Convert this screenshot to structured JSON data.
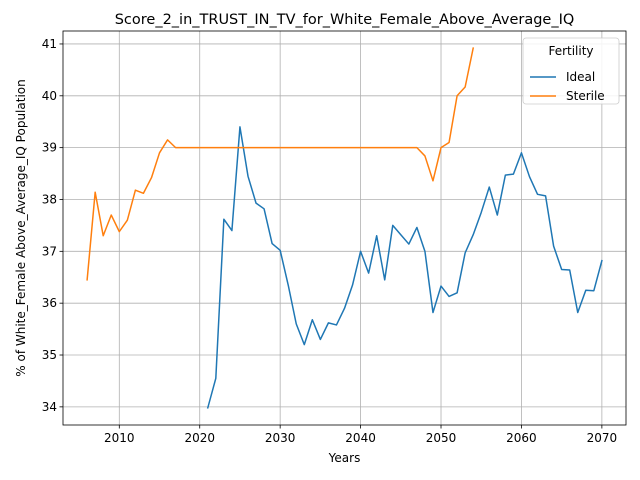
{
  "chart_data": {
    "type": "line",
    "title": "Score_2_in_TRUST_IN_TV_for_White_Female_Above_Average_IQ",
    "xlabel": "Years",
    "ylabel": "% of White_Female Above_Average_IQ Population",
    "xlim": [
      2003,
      2073
    ],
    "ylim": [
      33.65,
      41.25
    ],
    "xticks": [
      2010,
      2020,
      2030,
      2040,
      2050,
      2060,
      2070
    ],
    "yticks": [
      34,
      35,
      36,
      37,
      38,
      39,
      40,
      41
    ],
    "grid": true,
    "legend": {
      "title": "Fertility",
      "position": "upper right"
    },
    "series": [
      {
        "name": "Ideal",
        "color": "#1f77b4",
        "x": [
          2021,
          2022,
          2023,
          2024,
          2025,
          2026,
          2027,
          2028,
          2029,
          2030,
          2031,
          2032,
          2033,
          2034,
          2035,
          2036,
          2037,
          2038,
          2039,
          2040,
          2041,
          2042,
          2043,
          2044,
          2045,
          2046,
          2047,
          2048,
          2049,
          2050,
          2051,
          2052,
          2053,
          2054,
          2055,
          2056,
          2057,
          2058,
          2059,
          2060,
          2061,
          2062,
          2063,
          2064,
          2065,
          2066,
          2067,
          2068,
          2069,
          2070
        ],
        "y": [
          33.98,
          34.55,
          37.62,
          37.4,
          39.4,
          38.45,
          37.93,
          37.82,
          37.15,
          37.02,
          36.35,
          35.6,
          35.2,
          35.68,
          35.3,
          35.62,
          35.58,
          35.9,
          36.35,
          37.0,
          36.58,
          37.3,
          36.45,
          37.5,
          37.32,
          37.14,
          37.46,
          37.0,
          35.82,
          36.33,
          36.13,
          36.2,
          36.97,
          37.32,
          37.75,
          38.24,
          37.7,
          38.47,
          38.49,
          38.9,
          38.44,
          38.1,
          38.07,
          37.1,
          36.65,
          36.64,
          35.82,
          36.25,
          36.24,
          36.82
        ]
      },
      {
        "name": "Sterile",
        "color": "#ff7f0e",
        "x": [
          2006,
          2007,
          2008,
          2009,
          2010,
          2011,
          2012,
          2013,
          2014,
          2015,
          2016,
          2017,
          2018,
          2019,
          2020,
          2021,
          2022,
          2023,
          2024,
          2025,
          2026,
          2027,
          2028,
          2029,
          2030,
          2031,
          2032,
          2033,
          2034,
          2035,
          2036,
          2037,
          2038,
          2039,
          2040,
          2041,
          2042,
          2043,
          2044,
          2045,
          2046,
          2047,
          2048,
          2049,
          2050,
          2051,
          2052,
          2053,
          2054
        ],
        "y": [
          36.45,
          38.14,
          37.3,
          37.7,
          37.38,
          37.6,
          38.18,
          38.12,
          38.42,
          38.9,
          39.15,
          39.0,
          39.0,
          39.0,
          39.0,
          39.0,
          39.0,
          39.0,
          39.0,
          39.0,
          39.0,
          39.0,
          39.0,
          39.0,
          39.0,
          39.0,
          39.0,
          39.0,
          39.0,
          39.0,
          39.0,
          39.0,
          39.0,
          39.0,
          39.0,
          39.0,
          39.0,
          39.0,
          39.0,
          39.0,
          39.0,
          39.0,
          38.84,
          38.36,
          39.0,
          39.1,
          40.0,
          40.17,
          40.92
        ]
      }
    ]
  }
}
